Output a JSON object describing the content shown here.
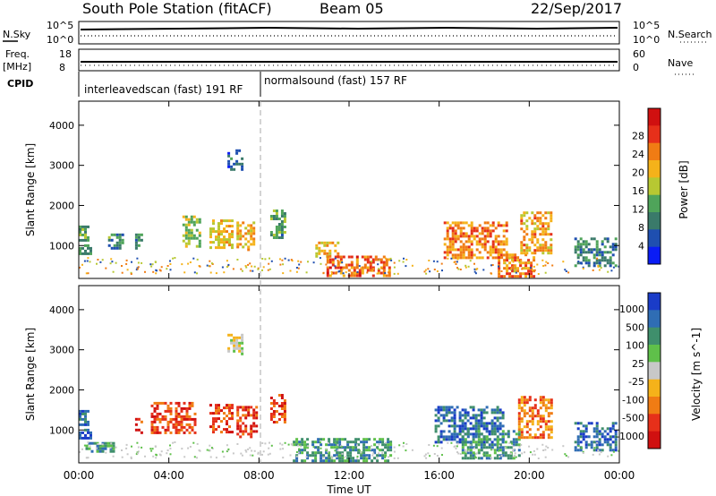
{
  "header": {
    "station": "South Pole Station (fitACF)",
    "beam": "Beam 05",
    "date": "22/Sep/2017"
  },
  "top_panels": {
    "nsky_label": "N.Sky",
    "nsky_ticks": [
      "10^5",
      "10^0"
    ],
    "nsearch_label": "N.Search",
    "nsearch_ticks": [
      "10^5",
      "10^0"
    ],
    "freq_label_line1": "Freq.",
    "freq_label_line2": "[MHz]",
    "freq_ticks": [
      "18",
      "8"
    ],
    "nave_label": "Nave",
    "nave_ticks": [
      "60",
      "0"
    ],
    "cpid_label": "CPID",
    "cpid_segments": [
      {
        "text": "interleavedscan (fast) 191 RF",
        "start_hour": 0
      },
      {
        "text": "normalsound (fast) 157 RF",
        "start_hour": 8
      }
    ]
  },
  "chart_data": [
    {
      "type": "heatmap",
      "title": "Power",
      "xlabel": "Time UT",
      "ylabel": "Slant Range [km]",
      "x_ticks": [
        "00:00",
        "04:00",
        "08:00",
        "12:00",
        "16:00",
        "20:00",
        "00:00"
      ],
      "xlim_hours": [
        0,
        24
      ],
      "y_ticks": [
        1000,
        2000,
        3000,
        4000
      ],
      "ylim_km": [
        180,
        4600
      ],
      "colorbar_label": "Power [dB]",
      "colorbar_ticks": [
        "4",
        "8",
        "12",
        "16",
        "20",
        "24",
        "28"
      ],
      "colorbar_range_db": [
        0,
        30
      ],
      "colors": [
        "#0a1cf5",
        "#1f4fb0",
        "#3a7a6a",
        "#4fa45a",
        "#b7c832",
        "#f5b21a",
        "#f07c14",
        "#e6301a",
        "#d01010"
      ],
      "echo_regions": [
        {
          "t0": 0.0,
          "t1": 0.5,
          "r0": 800,
          "r1": 1500,
          "value": 10
        },
        {
          "t0": 1.3,
          "t1": 1.9,
          "r0": 950,
          "r1": 1300,
          "value": 9
        },
        {
          "t0": 2.5,
          "t1": 2.8,
          "r0": 950,
          "r1": 1300,
          "value": 8
        },
        {
          "t0": 4.6,
          "t1": 5.4,
          "r0": 950,
          "r1": 1750,
          "value": 14
        },
        {
          "t0": 5.8,
          "t1": 6.8,
          "r0": 950,
          "r1": 1650,
          "value": 18
        },
        {
          "t0": 6.6,
          "t1": 7.2,
          "r0": 2900,
          "r1": 3400,
          "value": 6
        },
        {
          "t0": 7.0,
          "t1": 7.8,
          "r0": 900,
          "r1": 1600,
          "value": 20
        },
        {
          "t0": 8.5,
          "t1": 9.2,
          "r0": 1200,
          "r1": 1900,
          "value": 10
        },
        {
          "t0": 10.5,
          "t1": 11.5,
          "r0": 700,
          "r1": 1100,
          "value": 18
        },
        {
          "t0": 11.0,
          "t1": 13.8,
          "r0": 250,
          "r1": 750,
          "value": 24
        },
        {
          "t0": 16.2,
          "t1": 19.0,
          "r0": 700,
          "r1": 1600,
          "value": 22
        },
        {
          "t0": 18.6,
          "t1": 20.2,
          "r0": 250,
          "r1": 800,
          "value": 23
        },
        {
          "t0": 19.6,
          "t1": 21.0,
          "r0": 800,
          "r1": 1850,
          "value": 20
        },
        {
          "t0": 22.0,
          "t1": 23.8,
          "r0": 500,
          "r1": 1200,
          "value": 8
        }
      ]
    },
    {
      "type": "heatmap",
      "title": "Velocity",
      "xlabel": "Time UT",
      "ylabel": "Slant Range [km]",
      "x_ticks": [
        "00:00",
        "04:00",
        "08:00",
        "12:00",
        "16:00",
        "20:00",
        "00:00"
      ],
      "xlim_hours": [
        0,
        24
      ],
      "y_ticks": [
        1000,
        2000,
        3000,
        4000
      ],
      "ylim_km": [
        180,
        4600
      ],
      "colorbar_label": "Velocity [m s^-1]",
      "colorbar_ticks": [
        "1000",
        "500",
        "100",
        "25",
        "-25",
        "-100",
        "-500",
        "-1000"
      ],
      "colors": [
        "#1a3cc8",
        "#2f6db4",
        "#3f8f6c",
        "#5fc04a",
        "#c8c8c8",
        "#f5b21a",
        "#f07c14",
        "#e6301a",
        "#d01010"
      ],
      "echo_regions": [
        {
          "t0": 0.0,
          "t1": 0.5,
          "r0": 800,
          "r1": 1500,
          "value": 500
        },
        {
          "t0": 0.3,
          "t1": 1.5,
          "r0": 450,
          "r1": 700,
          "value": 100
        },
        {
          "t0": 2.5,
          "t1": 2.8,
          "r0": 950,
          "r1": 1300,
          "value": -500
        },
        {
          "t0": 3.2,
          "t1": 5.2,
          "r0": 950,
          "r1": 1700,
          "value": -500
        },
        {
          "t0": 5.8,
          "t1": 6.8,
          "r0": 950,
          "r1": 1650,
          "value": -500
        },
        {
          "t0": 6.6,
          "t1": 7.2,
          "r0": 2900,
          "r1": 3400,
          "value": 0
        },
        {
          "t0": 7.0,
          "t1": 7.9,
          "r0": 800,
          "r1": 1600,
          "value": -500
        },
        {
          "t0": 8.5,
          "t1": 9.2,
          "r0": 1200,
          "r1": 1900,
          "value": -500
        },
        {
          "t0": 9.5,
          "t1": 13.8,
          "r0": 250,
          "r1": 800,
          "value": 100
        },
        {
          "t0": 15.8,
          "t1": 18.8,
          "r0": 700,
          "r1": 1600,
          "value": 500
        },
        {
          "t0": 17.0,
          "t1": 19.6,
          "r0": 300,
          "r1": 1000,
          "value": 100
        },
        {
          "t0": 19.5,
          "t1": 21.0,
          "r0": 800,
          "r1": 1850,
          "value": -100
        },
        {
          "t0": 22.0,
          "t1": 23.8,
          "r0": 500,
          "r1": 1200,
          "value": 500
        }
      ]
    }
  ]
}
